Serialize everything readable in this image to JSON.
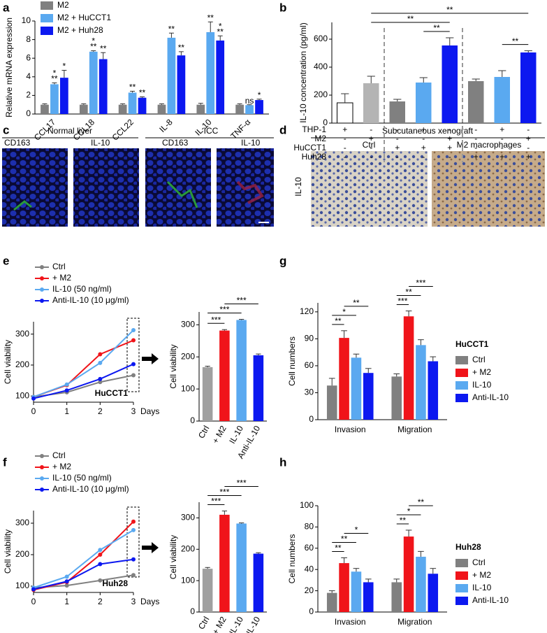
{
  "chart_data": [
    {
      "type": "bar",
      "panel": "a",
      "ylabel": "Relative mRNA expression",
      "categories": [
        "CCL17",
        "CCL18",
        "CCL22",
        "IL-8",
        "IL-10",
        "TNF-α"
      ],
      "series": [
        {
          "name": "M2",
          "color": "#808080",
          "values": [
            1,
            1,
            1,
            1,
            1,
            1
          ],
          "errors": [
            0.1,
            0.1,
            0.1,
            0.1,
            0.15,
            0.1
          ]
        },
        {
          "name": "M2 + HuCCT1",
          "color": "#5aa9f0",
          "values": [
            3.2,
            6.7,
            2.3,
            8.2,
            8.8,
            0.95
          ],
          "errors": [
            0.15,
            0.1,
            0.15,
            0.5,
            1.1,
            0.05
          ]
        },
        {
          "name": "M2 + Huh28",
          "color": "#0c18f0",
          "values": [
            3.9,
            5.9,
            1.75,
            6.3,
            7.9,
            1.5
          ],
          "errors": [
            0.8,
            0.7,
            0.1,
            0.4,
            0.5,
            0.1
          ]
        }
      ],
      "ylim": [
        0,
        10
      ],
      "yticks": [
        0,
        2,
        4,
        6,
        8,
        10
      ],
      "legend": "upper left",
      "annotations": [
        {
          "text": "**",
          "series": 1,
          "category": 0
        },
        {
          "text": "*",
          "series": 1,
          "category": 0
        },
        {
          "text": "*",
          "series": 2,
          "category": 0
        },
        {
          "text": "**",
          "series": 1,
          "category": 1
        },
        {
          "text": "*",
          "series": 1,
          "category": 1
        },
        {
          "text": "**",
          "series": 2,
          "category": 1
        },
        {
          "text": "**",
          "series": 1,
          "category": 2
        },
        {
          "text": "**",
          "series": 2,
          "category": 2
        },
        {
          "text": "**",
          "series": 1,
          "category": 3
        },
        {
          "text": "**",
          "series": 2,
          "category": 3
        },
        {
          "text": "**",
          "series": 1,
          "category": 4
        },
        {
          "text": "**",
          "series": 2,
          "category": 4
        },
        {
          "text": "*",
          "series": 2,
          "category": 4
        },
        {
          "text": "ns",
          "series": 1,
          "category": 5
        },
        {
          "text": "*",
          "series": 2,
          "category": 5
        }
      ]
    },
    {
      "type": "bar",
      "panel": "b",
      "ylabel": "IL-10 concentration (pg/ml)",
      "values": [
        145,
        285,
        155,
        290,
        555,
        300,
        330,
        505
      ],
      "errors": [
        65,
        50,
        15,
        35,
        55,
        15,
        45,
        12
      ],
      "colors": [
        "#ffffff",
        "#b4b4b4",
        "#808080",
        "#5aa9f0",
        "#0c18f0",
        "#808080",
        "#5aa9f0",
        "#0c18f0"
      ],
      "ylim": [
        0,
        720
      ],
      "yticks": [
        0,
        200,
        400,
        600
      ],
      "brackets": [
        {
          "from": 3,
          "to": 4,
          "text": "**"
        },
        {
          "from": 6,
          "to": 7,
          "text": "**"
        },
        {
          "from": 1,
          "to": 4,
          "text": "**"
        },
        {
          "from": 1,
          "to": 7,
          "text": "**"
        }
      ],
      "matrix": [
        {
          "label": "THP-1",
          "signs": [
            "+",
            "-",
            "-",
            "+",
            "-",
            "-",
            "+",
            "-"
          ]
        },
        {
          "label": "M2",
          "signs": [
            "-",
            "+",
            "-",
            "-",
            "+",
            "-",
            "-",
            "+"
          ]
        },
        {
          "label": "HuCCT1",
          "signs": [
            "-",
            "-",
            "+",
            "+",
            "+",
            "-",
            "-",
            "-"
          ]
        },
        {
          "label": "Huh28",
          "signs": [
            "-",
            "-",
            "-",
            "-",
            "-",
            "+",
            "+",
            "+"
          ]
        }
      ]
    },
    {
      "type": "line",
      "panel": "e",
      "ylabel": "Cell viability",
      "xlabel": "Days",
      "annotation": "HuCCT1",
      "x": [
        0,
        1,
        2,
        3
      ],
      "xlim": [
        0,
        3
      ],
      "xticks": [
        0,
        1,
        2,
        3
      ],
      "ylim": [
        80,
        340
      ],
      "yticks": [
        100,
        200,
        300
      ],
      "series": [
        {
          "name": "Ctrl",
          "color": "#808080",
          "values": [
            97,
            112,
            145,
            167
          ]
        },
        {
          "name": "+ M2",
          "color": "#f0141a",
          "values": [
            97,
            135,
            235,
            280
          ]
        },
        {
          "name": "IL-10 (50 ng/ml)",
          "color": "#5aa9f0",
          "values": [
            97,
            137,
            207,
            313
          ]
        },
        {
          "name": "Anti-IL-10 (10 μg/ml)",
          "color": "#0c18f0",
          "values": [
            92,
            118,
            155,
            203
          ]
        }
      ]
    },
    {
      "type": "bar",
      "ylabel": "Cell viability",
      "categories": [
        "Ctrl",
        "+ M2",
        "IL-10",
        "Anti-IL-10"
      ],
      "values": [
        168,
        282,
        315,
        205
      ],
      "errors": [
        3,
        3,
        2,
        4
      ],
      "colors": [
        "#a0a0a0",
        "#f0141a",
        "#5aa9f0",
        "#0c18f0"
      ],
      "ylim": [
        0,
        340
      ],
      "yticks": [
        0,
        100,
        200,
        300
      ],
      "brackets": [
        {
          "from": 0,
          "to": 1,
          "text": "***"
        },
        {
          "from": 0,
          "to": 2,
          "text": "***"
        },
        {
          "from": 1,
          "to": 3,
          "text": "***"
        }
      ]
    },
    {
      "type": "line",
      "panel": "f",
      "ylabel": "Cell viability",
      "xlabel": "Days",
      "annotation": "Huh28",
      "x": [
        0,
        1,
        2,
        3
      ],
      "xlim": [
        0,
        3
      ],
      "xticks": [
        0,
        1,
        2,
        3
      ],
      "ylim": [
        80,
        340
      ],
      "yticks": [
        100,
        200,
        300
      ],
      "series": [
        {
          "name": "Ctrl",
          "color": "#808080",
          "values": [
            95,
            102,
            118,
            135
          ]
        },
        {
          "name": "+ M2",
          "color": "#f0141a",
          "values": [
            88,
            113,
            200,
            305
          ]
        },
        {
          "name": "IL-10 (50 ng/ml)",
          "color": "#5aa9f0",
          "values": [
            95,
            130,
            215,
            278
          ]
        },
        {
          "name": "Anti-IL-10 (10 μg/ml)",
          "color": "#0c18f0",
          "values": [
            90,
            115,
            170,
            185
          ]
        }
      ]
    },
    {
      "type": "bar",
      "ylabel": "Cell viability",
      "categories": [
        "Ctrl",
        "+ M2",
        "IL-10",
        "Anti-IL-10"
      ],
      "values": [
        138,
        310,
        282,
        186
      ],
      "errors": [
        4,
        12,
        2,
        3
      ],
      "colors": [
        "#a0a0a0",
        "#f0141a",
        "#5aa9f0",
        "#0c18f0"
      ],
      "ylim": [
        0,
        350
      ],
      "yticks": [
        0,
        100,
        200,
        300
      ],
      "brackets": [
        {
          "from": 0,
          "to": 1,
          "text": "***"
        },
        {
          "from": 0,
          "to": 2,
          "text": "***"
        },
        {
          "from": 1,
          "to": 3,
          "text": "***"
        }
      ]
    },
    {
      "type": "bar",
      "panel": "g",
      "ylabel": "Cell numbers",
      "legend_title": "HuCCT1",
      "legend": "right",
      "categories": [
        "Invasion",
        "Migration"
      ],
      "series": [
        {
          "name": "Ctrl",
          "color": "#808080",
          "values": [
            38,
            48
          ],
          "errors": [
            8,
            3
          ]
        },
        {
          "name": "+ M2",
          "color": "#f0141a",
          "values": [
            91,
            115
          ],
          "errors": [
            8,
            6
          ]
        },
        {
          "name": "IL-10",
          "color": "#5aa9f0",
          "values": [
            69,
            83
          ],
          "errors": [
            4,
            6
          ]
        },
        {
          "name": "Anti-IL-10",
          "color": "#0c18f0",
          "values": [
            52,
            65
          ],
          "errors": [
            5,
            5
          ]
        }
      ],
      "ylim": [
        0,
        130
      ],
      "yticks": [
        0,
        30,
        60,
        90,
        120
      ],
      "brackets": [
        {
          "category": 0,
          "from": 0,
          "to": 1,
          "text": "**"
        },
        {
          "category": 0,
          "from": 0,
          "to": 2,
          "text": "*"
        },
        {
          "category": 0,
          "from": 1,
          "to": 3,
          "text": "**"
        },
        {
          "category": 1,
          "from": 0,
          "to": 1,
          "text": "***"
        },
        {
          "category": 1,
          "from": 0,
          "to": 2,
          "text": "**"
        },
        {
          "category": 1,
          "from": 1,
          "to": 3,
          "text": "***"
        }
      ]
    },
    {
      "type": "bar",
      "panel": "h",
      "ylabel": "Cell numbers",
      "legend_title": "Huh28",
      "legend": "right",
      "categories": [
        "Invasion",
        "Migration"
      ],
      "series": [
        {
          "name": "Ctrl",
          "color": "#808080",
          "values": [
            18,
            28
          ],
          "errors": [
            2,
            3
          ]
        },
        {
          "name": "+ M2",
          "color": "#f0141a",
          "values": [
            46,
            71
          ],
          "errors": [
            5,
            6
          ]
        },
        {
          "name": "IL-10",
          "color": "#5aa9f0",
          "values": [
            38,
            52
          ],
          "errors": [
            3,
            5
          ]
        },
        {
          "name": "Anti-IL-10",
          "color": "#0c18f0",
          "values": [
            28,
            36
          ],
          "errors": [
            3,
            5
          ]
        }
      ],
      "ylim": [
        0,
        100
      ],
      "yticks": [
        0,
        20,
        40,
        60,
        80,
        100
      ],
      "brackets": [
        {
          "category": 0,
          "from": 0,
          "to": 1,
          "text": "**"
        },
        {
          "category": 0,
          "from": 0,
          "to": 2,
          "text": "**"
        },
        {
          "category": 0,
          "from": 1,
          "to": 3,
          "text": "*"
        },
        {
          "category": 1,
          "from": 0,
          "to": 1,
          "text": "**"
        },
        {
          "category": 1,
          "from": 0,
          "to": 2,
          "text": "*"
        },
        {
          "category": 1,
          "from": 1,
          "to": 3,
          "text": "**"
        }
      ]
    }
  ],
  "images": [
    {
      "panel": "c",
      "groups": [
        {
          "title": "Normal liver",
          "labels": [
            "CD163",
            "IL-10"
          ]
        },
        {
          "title": "ICC",
          "labels": [
            "CD163",
            "IL-10"
          ]
        }
      ]
    },
    {
      "panel": "d",
      "title": "Subcutaneous xenograft",
      "labels": [
        "Ctrl",
        "M2 macrophages"
      ],
      "row_label": "IL-10"
    }
  ]
}
